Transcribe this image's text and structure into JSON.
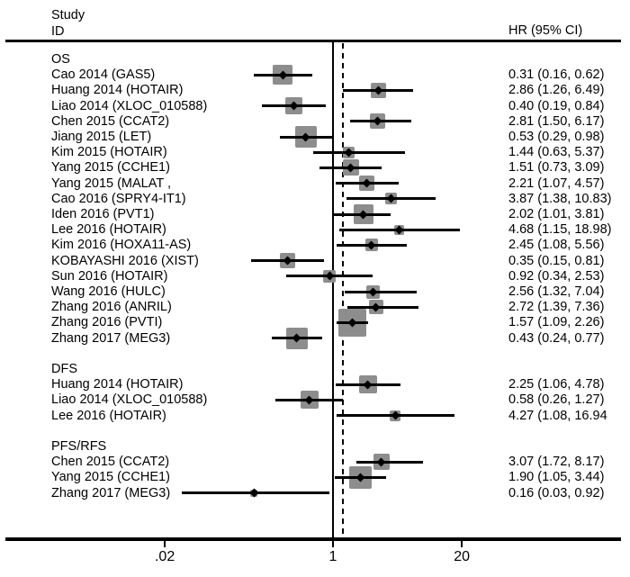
{
  "header": {
    "study_col_line1": "Study",
    "study_col_line2": "ID",
    "effect_col": "HR (95% CI)"
  },
  "colors": {
    "background": "#ffffff",
    "text": "#000000",
    "weight_box": "#8d8d8d",
    "line": "#000000"
  },
  "chart_data": {
    "type": "forest",
    "scale": "log10",
    "effect_measure": "HR",
    "x_axis": {
      "ticks": [
        {
          "label": ".02",
          "value": 0.02
        },
        {
          "label": "1",
          "value": 1
        },
        {
          "label": "20",
          "value": 20
        }
      ]
    },
    "null_line_value": 1,
    "pooled_dashed_line_value": 1.26,
    "groups": [
      {
        "label": "OS",
        "studies": [
          {
            "label": "Cao 2014 (GAS5)",
            "hr": 0.31,
            "lo": 0.16,
            "hi": 0.62,
            "hr_text": "0.31 (0.16, 0.62)",
            "box": 22
          },
          {
            "label": "Huang 2014 (HOTAIR)",
            "hr": 2.86,
            "lo": 1.26,
            "hi": 6.49,
            "hr_text": "2.86 (1.26, 6.49)",
            "box": 17
          },
          {
            "label": "Liao 2014 (XLOC_010588)",
            "hr": 0.4,
            "lo": 0.19,
            "hi": 0.84,
            "hr_text": "0.40 (0.19, 0.84)",
            "box": 19
          },
          {
            "label": "Chen 2015 (CCAT2)",
            "hr": 2.81,
            "lo": 1.5,
            "hi": 6.17,
            "hr_text": "2.81 (1.50, 6.17)",
            "box": 17
          },
          {
            "label": "Jiang 2015 (LET)",
            "hr": 0.53,
            "lo": 0.29,
            "hi": 0.98,
            "hr_text": "0.53 (0.29, 0.98)",
            "box": 24
          },
          {
            "label": "Kim 2015 (HOTAIR)",
            "hr": 1.44,
            "lo": 0.63,
            "hi": 5.37,
            "hr_text": "1.44 (0.63, 5.37)",
            "box": 13
          },
          {
            "label": "Yang 2015 (CCHE1)",
            "hr": 1.51,
            "lo": 0.73,
            "hi": 3.09,
            "hr_text": "1.51 (0.73, 3.09)",
            "box": 18
          },
          {
            "label": "Yang 2015 (MALAT ,",
            "hr": 2.21,
            "lo": 1.07,
            "hi": 4.57,
            "hr_text": "2.21 (1.07, 4.57)",
            "box": 17
          },
          {
            "label": "Cao 2016 (SPRY4-IT1)",
            "hr": 3.87,
            "lo": 1.38,
            "hi": 10.83,
            "hr_text": "3.87 (1.38, 10.83)",
            "box": 13
          },
          {
            "label": "Iden 2016 (PVT1)",
            "hr": 2.02,
            "lo": 1.01,
            "hi": 3.81,
            "hr_text": "2.02 (1.01, 3.81)",
            "box": 22
          },
          {
            "label": "Lee 2016 (HOTAIR)",
            "hr": 4.68,
            "lo": 1.15,
            "hi": 18.98,
            "hr_text": "4.68 (1.15, 18.98)",
            "box": 11
          },
          {
            "label": "Kim 2016 (HOXA11-AS)",
            "hr": 2.45,
            "lo": 1.08,
            "hi": 5.56,
            "hr_text": "2.45 (1.08, 5.56)",
            "box": 14
          },
          {
            "label": "KOBAYASHI 2016 (XIST)",
            "hr": 0.35,
            "lo": 0.15,
            "hi": 0.81,
            "hr_text": "0.35 (0.15, 0.81)",
            "box": 17
          },
          {
            "label": "Sun 2016 (HOTAIR)",
            "hr": 0.92,
            "lo": 0.34,
            "hi": 2.53,
            "hr_text": "0.92 (0.34, 2.53)",
            "box": 14
          },
          {
            "label": "Wang 2016 (HULC)",
            "hr": 2.56,
            "lo": 1.32,
            "hi": 7.04,
            "hr_text": "2.56 (1.32, 7.04)",
            "box": 15
          },
          {
            "label": "Zhang 2016 (ANRIL)",
            "hr": 2.72,
            "lo": 1.39,
            "hi": 7.36,
            "hr_text": "2.72 (1.39, 7.36)",
            "box": 16
          },
          {
            "label": "Zhang 2016 (PVTI)",
            "hr": 1.57,
            "lo": 1.09,
            "hi": 2.26,
            "hr_text": "1.57 (1.09, 2.26)",
            "box": 31
          },
          {
            "label": "Zhang 2017 (MEG3)",
            "hr": 0.43,
            "lo": 0.24,
            "hi": 0.77,
            "hr_text": "0.43 (0.24, 0.77)",
            "box": 24
          }
        ]
      },
      {
        "label": "DFS",
        "studies": [
          {
            "label": "Huang 2014 (HOTAIR)",
            "hr": 2.25,
            "lo": 1.06,
            "hi": 4.78,
            "hr_text": "2.25 (1.06, 4.78)",
            "box": 20
          },
          {
            "label": "Liao 2014 (XLOC_010588)",
            "hr": 0.58,
            "lo": 0.26,
            "hi": 1.27,
            "hr_text": "0.58 (0.26, 1.27)",
            "box": 20
          },
          {
            "label": "Lee 2016 (HOTAIR)",
            "hr": 4.27,
            "lo": 1.08,
            "hi": 16.94,
            "hr_text": "4.27 (1.08, 16.94",
            "box": 12
          }
        ]
      },
      {
        "label": "PFS/RFS",
        "studies": [
          {
            "label": "Chen 2015 (CCAT2)",
            "hr": 3.07,
            "lo": 1.72,
            "hi": 8.17,
            "hr_text": "3.07 (1.72, 8.17)",
            "box": 18
          },
          {
            "label": "Yang 2015 (CCHE1)",
            "hr": 1.9,
            "lo": 1.05,
            "hi": 3.44,
            "hr_text": "1.90 (1.05, 3.44)",
            "box": 25
          },
          {
            "label": "Zhang 2017 (MEG3)",
            "hr": 0.16,
            "lo": 0.03,
            "hi": 0.92,
            "hr_text": "0.16 (0.03, 0.92)",
            "box": 8
          }
        ]
      }
    ]
  }
}
